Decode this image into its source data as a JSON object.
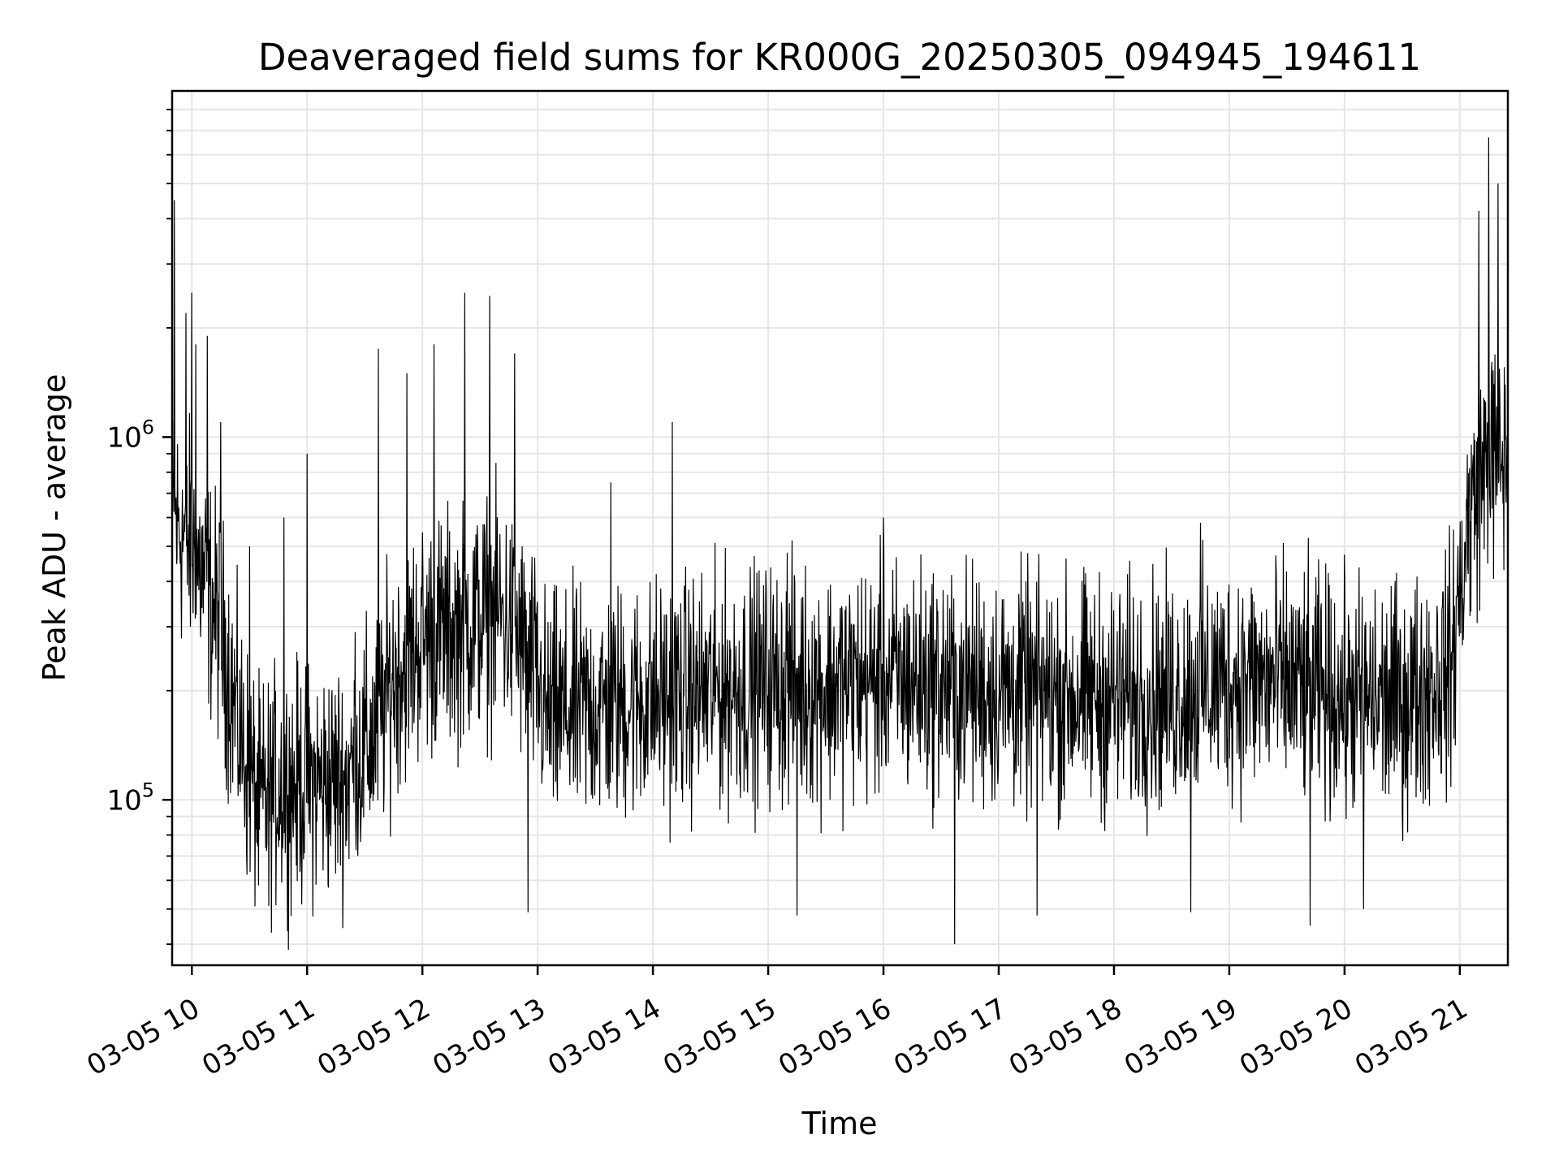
{
  "chart_data": {
    "type": "line",
    "title": "Deaveraged field sums for KR000G_20250305_094945_194611",
    "xlabel": "Time",
    "ylabel": "Peak ADU - average",
    "yscale": "log",
    "xlim": [
      "2025-03-05T09:49:45",
      "2025-03-05T21:25:00"
    ],
    "ylim": [
      35000,
      9000000
    ],
    "x_tick_labels": [
      "03-05 10",
      "03-05 11",
      "03-05 12",
      "03-05 13",
      "03-05 14",
      "03-05 15",
      "03-05 16",
      "03-05 17",
      "03-05 18",
      "03-05 19",
      "03-05 20",
      "03-05 21"
    ],
    "y_tick_labels": [
      {
        "base": "10",
        "exp": "5"
      },
      {
        "base": "10",
        "exp": "6"
      }
    ],
    "grid": true,
    "line_color": "#000000",
    "grid_color": "#e6e6e6",
    "series": [
      {
        "x": [
          "2025-03-05T09:50",
          "2025-03-05T10:00",
          "2025-03-05T10:15",
          "2025-03-05T10:25",
          "2025-03-05T10:35",
          "2025-03-05T10:45",
          "2025-03-05T11:00",
          "2025-03-05T11:20",
          "2025-03-05T11:35",
          "2025-03-05T11:45",
          "2025-03-05T12:00",
          "2025-03-05T12:20",
          "2025-03-05T12:40",
          "2025-03-05T12:55",
          "2025-03-05T13:05",
          "2025-03-05T13:30",
          "2025-03-05T14:00",
          "2025-03-05T14:30",
          "2025-03-05T15:00",
          "2025-03-05T15:30",
          "2025-03-05T16:00",
          "2025-03-05T16:30",
          "2025-03-05T17:00",
          "2025-03-05T17:30",
          "2025-03-05T18:00",
          "2025-03-05T18:30",
          "2025-03-05T19:00",
          "2025-03-05T19:30",
          "2025-03-05T20:00",
          "2025-03-05T20:30",
          "2025-03-05T20:55",
          "2025-03-05T21:05",
          "2025-03-05T21:15",
          "2025-03-05T21:25"
        ],
        "y": [
          600000,
          500000,
          300000,
          150000,
          95000,
          110000,
          110000,
          115000,
          150000,
          220000,
          280000,
          300000,
          330000,
          250000,
          170000,
          180000,
          190000,
          200000,
          210000,
          205000,
          215000,
          210000,
          200000,
          195000,
          190000,
          195000,
          215000,
          210000,
          190000,
          185000,
          230000,
          600000,
          900000,
          850000
        ],
        "spikes": [
          {
            "x": "2025-03-05T09:51",
            "y": 4500000
          },
          {
            "x": "2025-03-05T09:57",
            "y": 2200000
          },
          {
            "x": "2025-03-05T10:00",
            "y": 2500000
          },
          {
            "x": "2025-03-05T10:02",
            "y": 1800000
          },
          {
            "x": "2025-03-05T10:08",
            "y": 1900000
          },
          {
            "x": "2025-03-05T10:15",
            "y": 1100000
          },
          {
            "x": "2025-03-05T10:30",
            "y": 500000
          },
          {
            "x": "2025-03-05T10:48",
            "y": 600000
          },
          {
            "x": "2025-03-05T11:00",
            "y": 900000
          },
          {
            "x": "2025-03-05T11:25",
            "y": 290000
          },
          {
            "x": "2025-03-05T11:37",
            "y": 1750000
          },
          {
            "x": "2025-03-05T11:52",
            "y": 1500000
          },
          {
            "x": "2025-03-05T12:06",
            "y": 1800000
          },
          {
            "x": "2025-03-05T12:22",
            "y": 2500000
          },
          {
            "x": "2025-03-05T12:35",
            "y": 2450000
          },
          {
            "x": "2025-03-05T12:48",
            "y": 1700000
          },
          {
            "x": "2025-03-05T13:38",
            "y": 750000
          },
          {
            "x": "2025-03-05T14:10",
            "y": 1100000
          },
          {
            "x": "2025-03-05T15:10",
            "y": 480000
          },
          {
            "x": "2025-03-05T16:00",
            "y": 600000
          },
          {
            "x": "2025-03-05T18:45",
            "y": 580000
          },
          {
            "x": "2025-03-05T21:10",
            "y": 4200000
          },
          {
            "x": "2025-03-05T21:15",
            "y": 6700000
          },
          {
            "x": "2025-03-05T21:20",
            "y": 5000000
          }
        ],
        "dips": [
          {
            "x": "2025-03-05T10:40",
            "y": 51000
          },
          {
            "x": "2025-03-05T12:55",
            "y": 49000
          },
          {
            "x": "2025-03-05T15:15",
            "y": 48000
          },
          {
            "x": "2025-03-05T16:37",
            "y": 40000
          },
          {
            "x": "2025-03-05T17:20",
            "y": 48000
          },
          {
            "x": "2025-03-05T18:40",
            "y": 49000
          },
          {
            "x": "2025-03-05T19:42",
            "y": 45000
          },
          {
            "x": "2025-03-05T20:10",
            "y": 50000
          }
        ]
      }
    ]
  }
}
